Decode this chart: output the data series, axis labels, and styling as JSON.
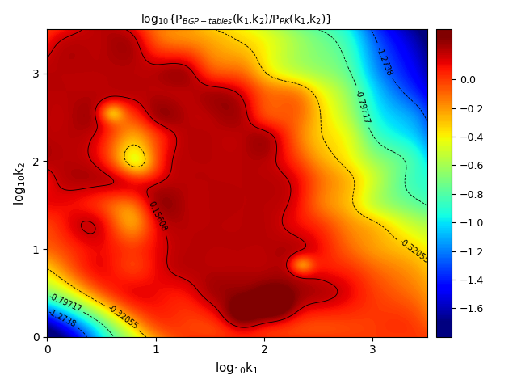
{
  "title": "log$_{10}${P$_{BGP-tables}$(k$_1$,k$_2$)/P$_{PK}$(k$_1$,k$_2$)}",
  "xlabel": "log$_{10}$k$_1$",
  "ylabel": "log$_{10}$k$_2$",
  "xlim": [
    0,
    3.5
  ],
  "ylim": [
    0,
    3.5
  ],
  "xticks": [
    0,
    1,
    2,
    3
  ],
  "yticks": [
    0,
    1,
    2,
    3
  ],
  "colorbar_ticks": [
    0,
    -0.2,
    -0.4,
    -0.6,
    -0.8,
    -1.0,
    -1.2,
    -1.4,
    -1.6
  ],
  "vmin": -1.7,
  "vmax": 0.3,
  "contour_levels": [
    -1.2738,
    -0.79717,
    -0.32055,
    0.15608
  ],
  "background_color": "#ffffff",
  "figsize": [
    6.4,
    4.8
  ],
  "dpi": 100
}
